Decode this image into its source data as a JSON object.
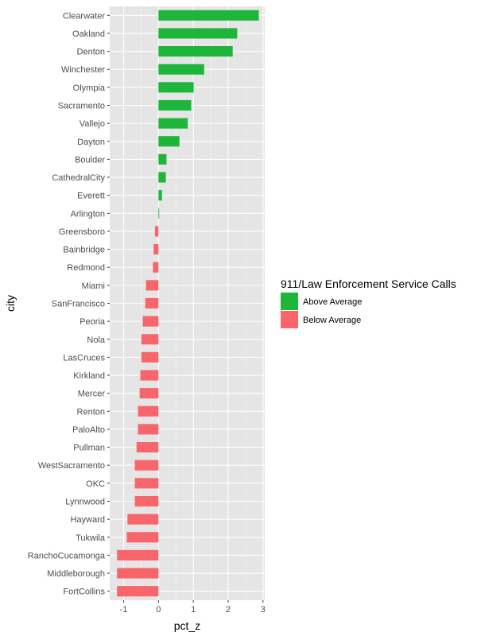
{
  "chart_data": {
    "type": "bar",
    "orientation": "horizontal",
    "xlabel": "pct_z",
    "ylabel": "city",
    "xlim": [
      -1.4,
      3.05
    ],
    "xticks": [
      -1,
      0,
      1,
      2,
      3
    ],
    "grid": true,
    "legend": {
      "title": "911/Law Enforcement Service Calls",
      "placement": "right",
      "items": [
        {
          "label": "Above Average",
          "color": "#1db53a"
        },
        {
          "label": "Below Average",
          "color": "#f8666b"
        }
      ]
    },
    "categories": [
      "Clearwater",
      "Oakland",
      "Denton",
      "Winchester",
      "Olympia",
      "Sacramento",
      "Vallejo",
      "Dayton",
      "Boulder",
      "CathedralCity",
      "Everett",
      "Arlington",
      "Greensboro",
      "Bainbridge",
      "Redmond",
      "Miami",
      "SanFrancisco",
      "Peoria",
      "Nola",
      "LasCruces",
      "Kirkland",
      "Mercer",
      "Renton",
      "PaloAlto",
      "Pullman",
      "WestSacramento",
      "OKC",
      "Lynnwood",
      "Hayward",
      "Tukwila",
      "RanchoCucamonga",
      "Middleborough",
      "FortCollins"
    ],
    "values": [
      2.88,
      2.26,
      2.13,
      1.31,
      1.01,
      0.94,
      0.84,
      0.6,
      0.23,
      0.21,
      0.1,
      0.02,
      -0.1,
      -0.14,
      -0.16,
      -0.36,
      -0.38,
      -0.45,
      -0.49,
      -0.49,
      -0.52,
      -0.54,
      -0.59,
      -0.59,
      -0.63,
      -0.68,
      -0.68,
      -0.68,
      -0.89,
      -0.91,
      -1.19,
      -1.19,
      -1.19
    ],
    "groups": [
      "Above Average",
      "Above Average",
      "Above Average",
      "Above Average",
      "Above Average",
      "Above Average",
      "Above Average",
      "Above Average",
      "Above Average",
      "Above Average",
      "Above Average",
      "Above Average",
      "Below Average",
      "Below Average",
      "Below Average",
      "Below Average",
      "Below Average",
      "Below Average",
      "Below Average",
      "Below Average",
      "Below Average",
      "Below Average",
      "Below Average",
      "Below Average",
      "Below Average",
      "Below Average",
      "Below Average",
      "Below Average",
      "Below Average",
      "Below Average",
      "Below Average",
      "Below Average",
      "Below Average"
    ]
  },
  "colors": {
    "panel_bg": "#e5e5e5",
    "grid_major": "#ffffff",
    "grid_minor": "#f2f2f2",
    "above": "#1db53a",
    "below": "#f8666b"
  }
}
